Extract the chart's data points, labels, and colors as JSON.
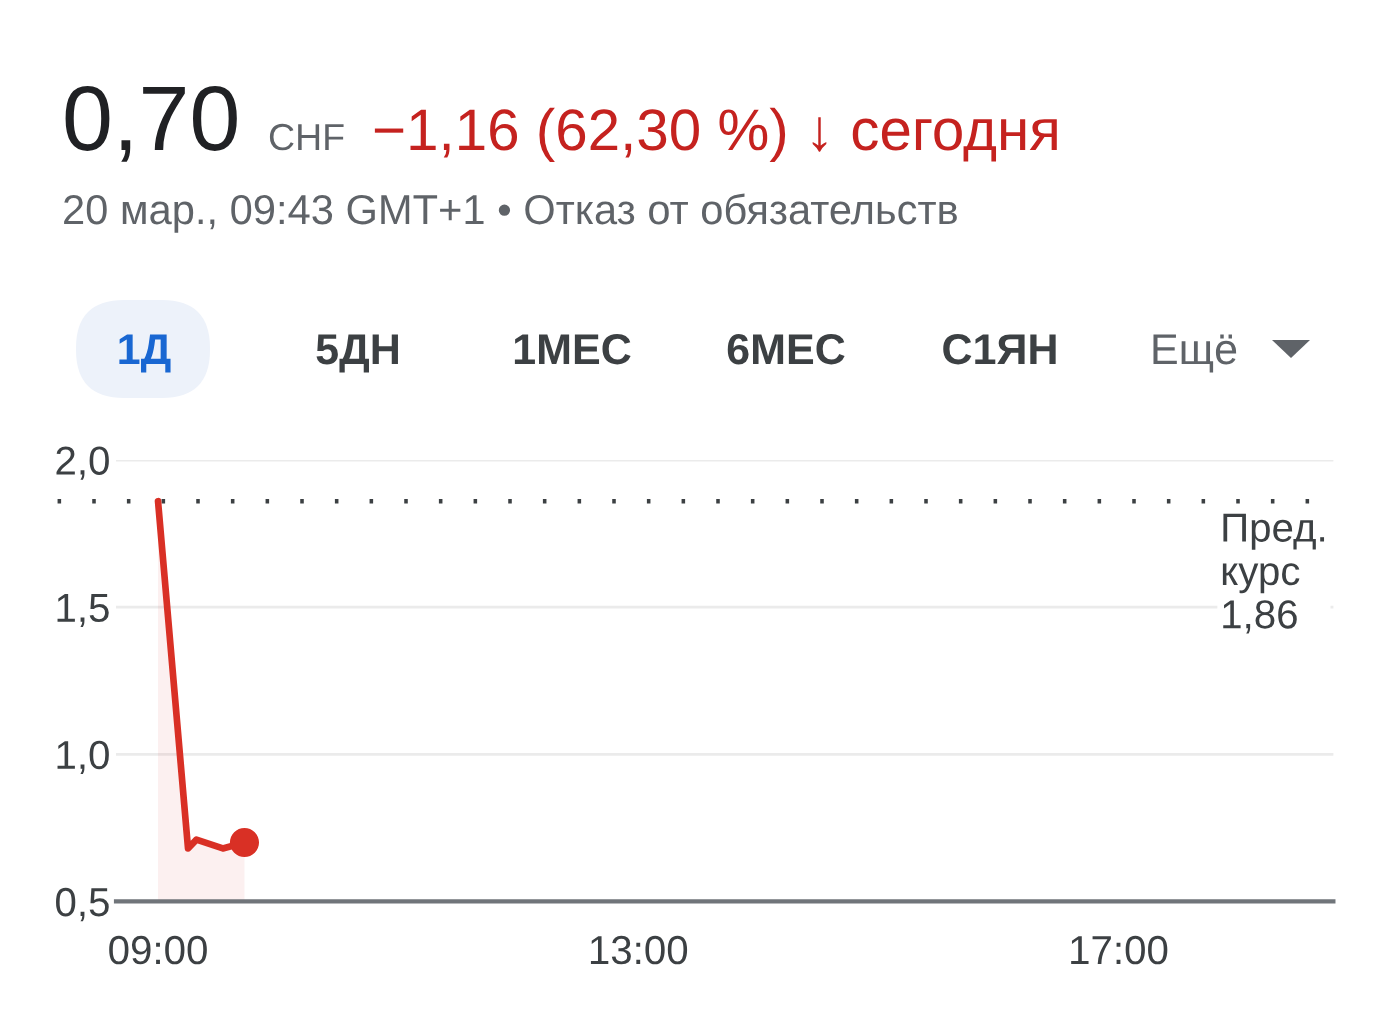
{
  "chart_data": {
    "type": "area",
    "title": "0,70",
    "subtitle": "20 мар., 09:43 GMT+1 • Отказ от обязательств",
    "annotations": [
      "CHF",
      "−1,16 (62,30 %) ↓ сегодня",
      "1Д",
      "5ДН",
      "1МЕС",
      "6МЕС",
      "С1ЯН",
      "Ещё"
    ],
    "series": [
      {
        "color": "#d93025",
        "x": [
          9.0,
          9.25,
          9.32,
          9.54,
          9.72
        ],
        "values": [
          1.86,
          0.68,
          0.71,
          0.68,
          0.7
        ]
      },
      {
        "type": "scatter",
        "marker": "circle",
        "color": "#d93025",
        "x": [
          9.72
        ],
        "values": [
          0.7
        ]
      }
    ],
    "xlim": [
      8.65,
      18.79
    ],
    "xticks": [
      {
        "value": 9,
        "label": "09:00"
      },
      {
        "value": 13,
        "label": "13:00"
      },
      {
        "value": 17,
        "label": "17:00"
      }
    ],
    "ylim": [
      0.5,
      2.0
    ],
    "yticks": [
      {
        "value": 0.5,
        "label": "0,5"
      },
      {
        "value": 1.0,
        "label": "1,0"
      },
      {
        "value": 1.5,
        "label": "1,5"
      },
      {
        "value": 2.0,
        "label": "2,0"
      }
    ],
    "ref_lines": [
      {
        "axis": "y",
        "value": 1.86,
        "label": "Пред.\nкурс\n1,86",
        "color": "#3c4043",
        "line_style": "dotted"
      }
    ],
    "grid": "y"
  }
}
